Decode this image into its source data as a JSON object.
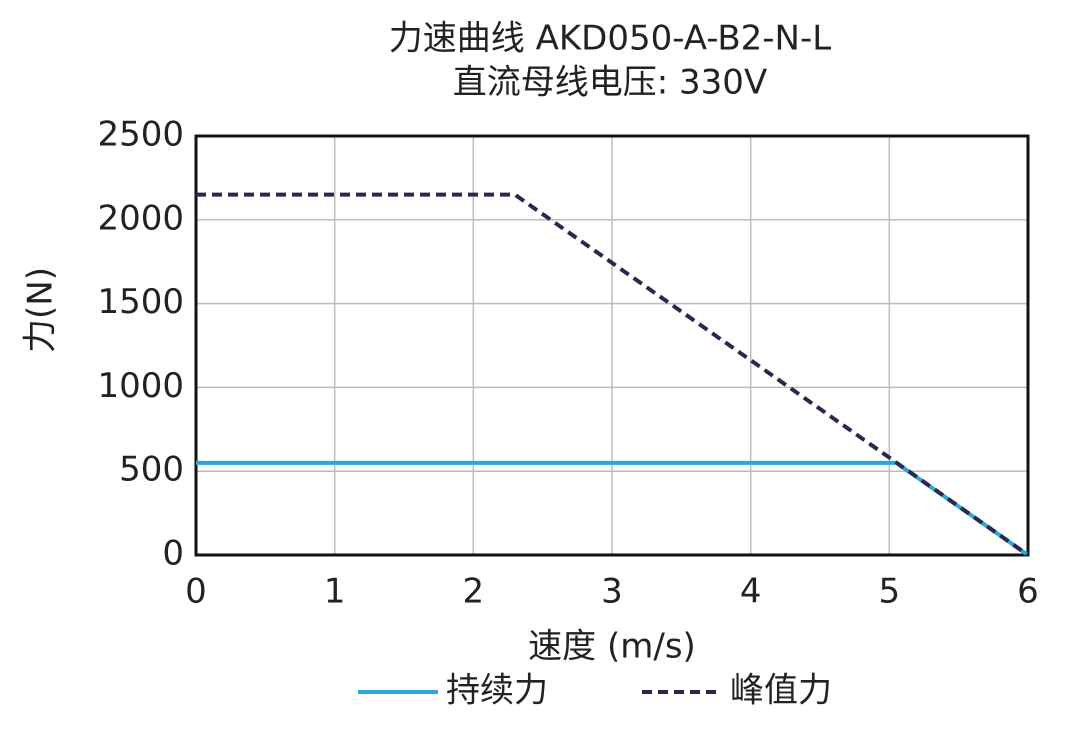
{
  "chart_data": {
    "type": "line",
    "title": "力速曲线 AKD050-A-B2-N-L",
    "subtitle": "直流母线电压: 330V",
    "x_label": "速度 (m/s)",
    "y_label": "力(N)",
    "xlim": [
      0,
      6
    ],
    "xticks": [
      0,
      1,
      2,
      3,
      4,
      5,
      6
    ],
    "ylim": [
      0,
      2500
    ],
    "yticks": [
      0,
      500,
      1000,
      1500,
      2000,
      2500
    ],
    "grid": true,
    "legend": "bottom",
    "series": [
      {
        "name": "持续力",
        "color": "#29a8df",
        "dash": false,
        "x": [
          0,
          5.05,
          6
        ],
        "values": [
          550,
          550,
          0
        ]
      },
      {
        "name": "峰值力",
        "color": "#262a4f",
        "dash": true,
        "x": [
          0,
          2.3,
          6
        ],
        "values": [
          2150,
          2150,
          0
        ]
      }
    ]
  }
}
